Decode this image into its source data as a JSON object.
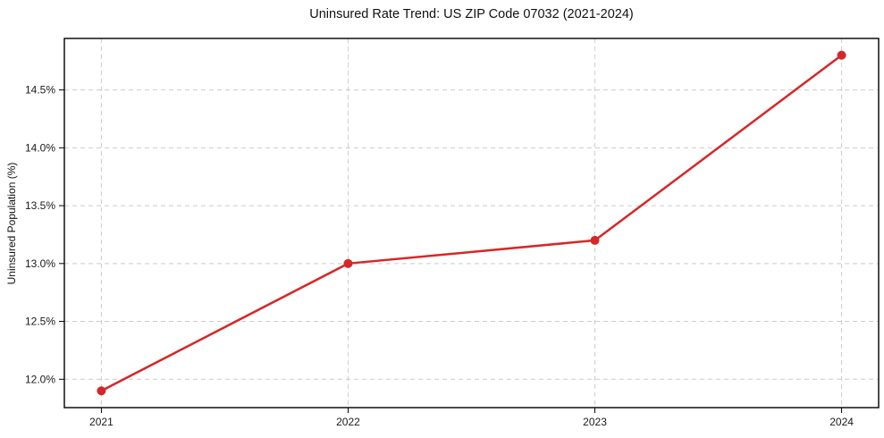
{
  "chart_data": {
    "type": "line",
    "title": "Uninsured Rate Trend: US ZIP Code 07032 (2021-2024)",
    "xlabel": "",
    "ylabel": "Uninsured Population (%)",
    "x": [
      2021,
      2022,
      2023,
      2024
    ],
    "values": [
      11.9,
      13.0,
      13.2,
      14.8
    ],
    "xticks": [
      2021,
      2022,
      2023,
      2024
    ],
    "xtick_labels": [
      "2021",
      "2022",
      "2023",
      "2024"
    ],
    "yticks": [
      12.0,
      12.5,
      13.0,
      13.5,
      14.0,
      14.5
    ],
    "ytick_labels": [
      "12.0%",
      "12.5%",
      "13.0%",
      "13.5%",
      "14.0%",
      "14.5%"
    ],
    "xlim": [
      2020.85,
      2024.15
    ],
    "ylim": [
      11.755,
      14.945
    ],
    "grid": true,
    "grid_style": "dashed",
    "grid_color": "#cccccc",
    "line_color": "#d62728",
    "marker": "circle",
    "legend": "none"
  }
}
